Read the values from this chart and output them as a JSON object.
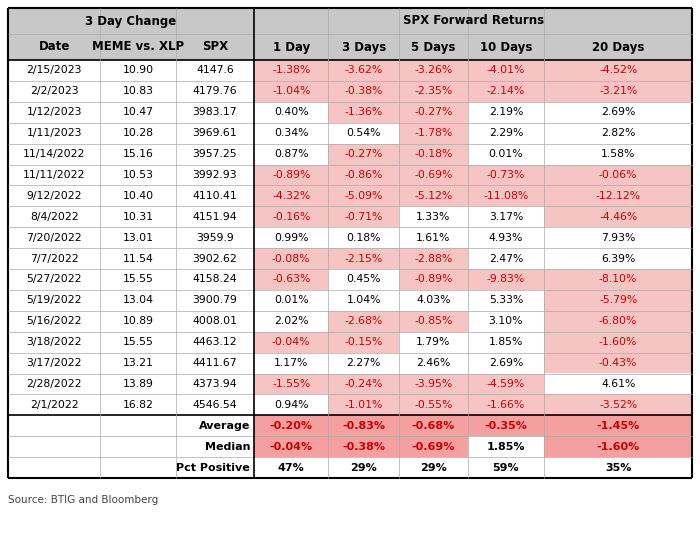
{
  "title_left": "3 Day Change",
  "title_right": "SPX Forward Returns",
  "col_headers": [
    "Date",
    "MEME vs. XLP",
    "SPX",
    "1 Day",
    "3 Days",
    "5 Days",
    "10 Days",
    "20 Days"
  ],
  "rows": [
    [
      "2/15/2023",
      "10.90",
      "4147.6",
      "-1.38%",
      "-3.62%",
      "-3.26%",
      "-4.01%",
      "-4.52%"
    ],
    [
      "2/2/2023",
      "10.83",
      "4179.76",
      "-1.04%",
      "-0.38%",
      "-2.35%",
      "-2.14%",
      "-3.21%"
    ],
    [
      "1/12/2023",
      "10.47",
      "3983.17",
      "0.40%",
      "-1.36%",
      "-0.27%",
      "2.19%",
      "2.69%"
    ],
    [
      "1/11/2023",
      "10.28",
      "3969.61",
      "0.34%",
      "0.54%",
      "-1.78%",
      "2.29%",
      "2.82%"
    ],
    [
      "11/14/2022",
      "15.16",
      "3957.25",
      "0.87%",
      "-0.27%",
      "-0.18%",
      "0.01%",
      "1.58%"
    ],
    [
      "11/11/2022",
      "10.53",
      "3992.93",
      "-0.89%",
      "-0.86%",
      "-0.69%",
      "-0.73%",
      "-0.06%"
    ],
    [
      "9/12/2022",
      "10.40",
      "4110.41",
      "-4.32%",
      "-5.09%",
      "-5.12%",
      "-11.08%",
      "-12.12%"
    ],
    [
      "8/4/2022",
      "10.31",
      "4151.94",
      "-0.16%",
      "-0.71%",
      "1.33%",
      "3.17%",
      "-4.46%"
    ],
    [
      "7/20/2022",
      "13.01",
      "3959.9",
      "0.99%",
      "0.18%",
      "1.61%",
      "4.93%",
      "7.93%"
    ],
    [
      "7/7/2022",
      "11.54",
      "3902.62",
      "-0.08%",
      "-2.15%",
      "-2.88%",
      "2.47%",
      "6.39%"
    ],
    [
      "5/27/2022",
      "15.55",
      "4158.24",
      "-0.63%",
      "0.45%",
      "-0.89%",
      "-9.83%",
      "-8.10%"
    ],
    [
      "5/19/2022",
      "13.04",
      "3900.79",
      "0.01%",
      "1.04%",
      "4.03%",
      "5.33%",
      "-5.79%"
    ],
    [
      "5/16/2022",
      "10.89",
      "4008.01",
      "2.02%",
      "-2.68%",
      "-0.85%",
      "3.10%",
      "-6.80%"
    ],
    [
      "3/18/2022",
      "15.55",
      "4463.12",
      "-0.04%",
      "-0.15%",
      "1.79%",
      "1.85%",
      "-1.60%"
    ],
    [
      "3/17/2022",
      "13.21",
      "4411.67",
      "1.17%",
      "2.27%",
      "2.46%",
      "2.69%",
      "-0.43%"
    ],
    [
      "2/28/2022",
      "13.89",
      "4373.94",
      "-1.55%",
      "-0.24%",
      "-3.95%",
      "-4.59%",
      "4.61%"
    ],
    [
      "2/1/2022",
      "16.82",
      "4546.54",
      "0.94%",
      "-1.01%",
      "-0.55%",
      "-1.66%",
      "-3.52%"
    ]
  ],
  "summary_rows": [
    [
      "",
      "",
      "Average",
      "-0.20%",
      "-0.83%",
      "-0.68%",
      "-0.35%",
      "-1.45%"
    ],
    [
      "",
      "",
      "Median",
      "-0.04%",
      "-0.38%",
      "-0.69%",
      "1.85%",
      "-1.60%"
    ],
    [
      "",
      "",
      "Pct Positive",
      "47%",
      "29%",
      "29%",
      "59%",
      "35%"
    ]
  ],
  "source": "Source: BTIG and Bloomberg",
  "header_bg": "#c8c8c8",
  "neg_color": "#f7c4c4",
  "pos_color": "#ffffff",
  "summary_neg_color": "#f5a0a0"
}
